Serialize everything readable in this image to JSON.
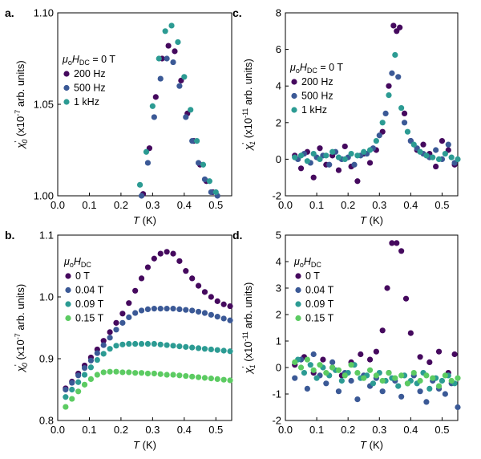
{
  "panels": [
    {
      "id": "a",
      "label": "a.",
      "ylabel_main": "χ",
      "ylabel_sub": "0",
      "ylabel_rest": " (x10",
      "ylabel_exp": "-7",
      "ylabel_end": " arb. units)",
      "xlabel_italic": "T",
      "xlabel_rest": " (K)",
      "xlim": [
        0.0,
        0.55
      ],
      "ylim": [
        1.0,
        1.1
      ],
      "xticks": [
        "0.0",
        "0.1",
        "0.2",
        "0.3",
        "0.4",
        "0.5"
      ],
      "xtick_values": [
        0.0,
        0.1,
        0.2,
        0.3,
        0.4,
        0.5
      ],
      "yticks": [
        "1.00",
        "1.05",
        "1.10"
      ],
      "ytick_values": [
        1.0,
        1.05,
        1.1
      ],
      "legend_title": "μoHDC = 0 T",
      "legend": [
        "200 Hz",
        "500 Hz",
        "1 kHz"
      ]
    },
    {
      "id": "b",
      "label": "b.",
      "ylabel_main": "χ",
      "ylabel_sub": "0",
      "ylabel_rest": " (x10",
      "ylabel_exp": "-7",
      "ylabel_end": " arb. units)",
      "xlabel_italic": "T",
      "xlabel_rest": " (K)",
      "xlim": [
        0.0,
        0.55
      ],
      "ylim": [
        0.8,
        1.1
      ],
      "xticks": [
        "0.0",
        "0.1",
        "0.2",
        "0.3",
        "0.4",
        "0.5"
      ],
      "xtick_values": [
        0.0,
        0.1,
        0.2,
        0.3,
        0.4,
        0.5
      ],
      "yticks": [
        "0.8",
        "0.9",
        "1.0",
        "1.1"
      ],
      "ytick_values": [
        0.8,
        0.9,
        1.0,
        1.1
      ],
      "legend_title": "μoHDC",
      "legend": [
        "0 T",
        "0.04 T",
        "0.09 T",
        "0.15 T"
      ]
    },
    {
      "id": "c",
      "label": "c.",
      "ylabel_main": "χ",
      "ylabel_sub": "1",
      "ylabel_rest": " (x10",
      "ylabel_exp": "-11",
      "ylabel_end": " arb. units)",
      "xlabel_italic": "T",
      "xlabel_rest": " (K)",
      "xlim": [
        0.0,
        0.55
      ],
      "ylim": [
        -2,
        8
      ],
      "xticks": [
        "0.0",
        "0.1",
        "0.2",
        "0.3",
        "0.4",
        "0.5"
      ],
      "xtick_values": [
        0.0,
        0.1,
        0.2,
        0.3,
        0.4,
        0.5
      ],
      "yticks": [
        "-2",
        "0",
        "2",
        "4",
        "6",
        "8"
      ],
      "ytick_values": [
        -2,
        0,
        2,
        4,
        6,
        8
      ],
      "legend_title": "μoHDC = 0 T",
      "legend": [
        "200 Hz",
        "500 Hz",
        "1 kHz"
      ]
    },
    {
      "id": "d",
      "label": "d.",
      "ylabel_main": "χ",
      "ylabel_sub": "1",
      "ylabel_rest": " (x10",
      "ylabel_exp": "-11",
      "ylabel_end": " arb. units)",
      "xlabel_italic": "T",
      "xlabel_rest": " (K)",
      "xlim": [
        0.0,
        0.55
      ],
      "ylim": [
        -2,
        5
      ],
      "xticks": [
        "0.0",
        "0.1",
        "0.2",
        "0.3",
        "0.4",
        "0.5"
      ],
      "xtick_values": [
        0.0,
        0.1,
        0.2,
        0.3,
        0.4,
        0.5
      ],
      "yticks": [
        "-2",
        "-1",
        "0",
        "1",
        "2",
        "3",
        "4",
        "5"
      ],
      "ytick_values": [
        -2,
        -1,
        0,
        1,
        2,
        3,
        4,
        5
      ],
      "legend_title": "μoHDC",
      "legend": [
        "0 T",
        "0.04 T",
        "0.09 T",
        "0.15 T"
      ]
    }
  ],
  "colors": {
    "purple": "#45095e",
    "blue": "#3b5996",
    "teal": "#2c9b93",
    "green": "#5ccb62"
  },
  "chart_data": [
    {
      "panel": "a",
      "type": "scatter",
      "xlabel": "T (K)",
      "ylabel": "χ0' (x10^-7 arb. units)",
      "xlim": [
        0.0,
        0.55
      ],
      "ylim": [
        1.0,
        1.1
      ],
      "series": [
        {
          "name": "200 Hz",
          "color": "purple",
          "x": [
            0.27,
            0.29,
            0.31,
            0.33,
            0.35,
            0.37,
            0.39,
            0.41,
            0.43,
            0.45,
            0.47,
            0.49
          ],
          "y": [
            1.001,
            1.026,
            1.054,
            1.075,
            1.082,
            1.079,
            1.063,
            1.045,
            1.03,
            1.017,
            1.008,
            1.002
          ]
        },
        {
          "name": "500 Hz",
          "color": "blue",
          "x": [
            0.265,
            0.285,
            0.305,
            0.325,
            0.345,
            0.365,
            0.385,
            0.405,
            0.425,
            0.445,
            0.465,
            0.485,
            0.505
          ],
          "y": [
            1.0,
            1.018,
            1.043,
            1.064,
            1.075,
            1.073,
            1.06,
            1.043,
            1.03,
            1.018,
            1.009,
            1.002,
            1.0
          ]
        },
        {
          "name": "1 kHz",
          "color": "teal",
          "x": [
            0.26,
            0.28,
            0.3,
            0.32,
            0.34,
            0.36,
            0.38,
            0.4,
            0.42,
            0.44,
            0.46,
            0.48,
            0.5
          ],
          "y": [
            1.006,
            1.024,
            1.049,
            1.075,
            1.09,
            1.093,
            1.084,
            1.065,
            1.047,
            1.03,
            1.017,
            1.008,
            1.002
          ]
        }
      ]
    },
    {
      "panel": "b",
      "type": "scatter",
      "xlabel": "T (K)",
      "ylabel": "χ0' (x10^-7 arb. units)",
      "xlim": [
        0.0,
        0.55
      ],
      "ylim": [
        0.8,
        1.1
      ],
      "series": [
        {
          "name": "0 T",
          "color": "purple",
          "x": [
            0.025,
            0.045,
            0.065,
            0.085,
            0.105,
            0.125,
            0.145,
            0.165,
            0.185,
            0.205,
            0.225,
            0.245,
            0.265,
            0.285,
            0.305,
            0.325,
            0.345,
            0.365,
            0.385,
            0.405,
            0.425,
            0.445,
            0.465,
            0.485,
            0.505,
            0.525,
            0.545
          ],
          "y": [
            0.852,
            0.863,
            0.876,
            0.889,
            0.902,
            0.915,
            0.929,
            0.943,
            0.958,
            0.973,
            0.99,
            1.01,
            1.03,
            1.048,
            1.062,
            1.07,
            1.073,
            1.07,
            1.058,
            1.042,
            1.03,
            1.018,
            1.008,
            1.0,
            0.993,
            0.988,
            0.985
          ]
        },
        {
          "name": "0.04 T",
          "color": "blue",
          "x": [
            0.025,
            0.045,
            0.065,
            0.085,
            0.105,
            0.125,
            0.145,
            0.165,
            0.185,
            0.205,
            0.225,
            0.245,
            0.265,
            0.285,
            0.305,
            0.325,
            0.345,
            0.365,
            0.385,
            0.405,
            0.425,
            0.445,
            0.465,
            0.485,
            0.505,
            0.525,
            0.545
          ],
          "y": [
            0.85,
            0.861,
            0.873,
            0.885,
            0.897,
            0.909,
            0.922,
            0.934,
            0.947,
            0.958,
            0.967,
            0.974,
            0.978,
            0.98,
            0.981,
            0.981,
            0.981,
            0.981,
            0.98,
            0.979,
            0.978,
            0.976,
            0.974,
            0.971,
            0.968,
            0.965,
            0.962
          ]
        },
        {
          "name": "0.09 T",
          "color": "teal",
          "x": [
            0.025,
            0.045,
            0.065,
            0.085,
            0.105,
            0.125,
            0.145,
            0.165,
            0.185,
            0.205,
            0.225,
            0.245,
            0.265,
            0.285,
            0.305,
            0.325,
            0.345,
            0.365,
            0.385,
            0.405,
            0.425,
            0.445,
            0.465,
            0.485,
            0.505,
            0.525,
            0.545
          ],
          "y": [
            0.838,
            0.85,
            0.862,
            0.874,
            0.886,
            0.898,
            0.908,
            0.916,
            0.921,
            0.923,
            0.924,
            0.924,
            0.924,
            0.924,
            0.924,
            0.923,
            0.922,
            0.921,
            0.92,
            0.919,
            0.918,
            0.917,
            0.916,
            0.915,
            0.914,
            0.913,
            0.912
          ]
        },
        {
          "name": "0.15 T",
          "color": "green",
          "x": [
            0.025,
            0.045,
            0.065,
            0.085,
            0.105,
            0.125,
            0.145,
            0.165,
            0.185,
            0.205,
            0.225,
            0.245,
            0.265,
            0.285,
            0.305,
            0.325,
            0.345,
            0.365,
            0.385,
            0.405,
            0.425,
            0.445,
            0.465,
            0.485,
            0.505,
            0.525,
            0.545
          ],
          "y": [
            0.822,
            0.835,
            0.847,
            0.858,
            0.867,
            0.874,
            0.878,
            0.879,
            0.879,
            0.878,
            0.878,
            0.877,
            0.877,
            0.876,
            0.876,
            0.875,
            0.874,
            0.874,
            0.873,
            0.872,
            0.871,
            0.87,
            0.869,
            0.868,
            0.867,
            0.866,
            0.865
          ]
        }
      ]
    },
    {
      "panel": "c",
      "type": "scatter",
      "xlabel": "T (K)",
      "ylabel": "χ1' (x10^-11 arb. units)",
      "xlim": [
        0.0,
        0.55
      ],
      "ylim": [
        -2,
        8
      ],
      "series": [
        {
          "name": "200 Hz",
          "color": "purple",
          "x": [
            0.03,
            0.05,
            0.07,
            0.09,
            0.11,
            0.13,
            0.15,
            0.17,
            0.19,
            0.21,
            0.23,
            0.25,
            0.27,
            0.29,
            0.31,
            0.33,
            0.345,
            0.355,
            0.365,
            0.38,
            0.4,
            0.42,
            0.44,
            0.46,
            0.48,
            0.5,
            0.52,
            0.54
          ],
          "y": [
            0.2,
            -0.5,
            0.4,
            -1.0,
            0.6,
            -0.3,
            0.2,
            -0.6,
            0.7,
            -0.4,
            -1.2,
            0.3,
            -0.2,
            0.5,
            1.5,
            4.0,
            7.3,
            7.0,
            7.2,
            2.5,
            1.0,
            0.5,
            0.8,
            0.3,
            -0.4,
            1.0,
            0.5,
            -0.3
          ]
        },
        {
          "name": "500 Hz",
          "color": "blue",
          "x": [
            0.04,
            0.06,
            0.08,
            0.1,
            0.12,
            0.14,
            0.16,
            0.18,
            0.2,
            0.22,
            0.24,
            0.26,
            0.28,
            0.3,
            0.32,
            0.34,
            0.36,
            0.38,
            0.4,
            0.42,
            0.44,
            0.46,
            0.48,
            0.5,
            0.52,
            0.54
          ],
          "y": [
            0.0,
            0.3,
            -0.2,
            0.1,
            0.2,
            -0.3,
            0.4,
            0.0,
            0.1,
            -0.3,
            0.2,
            0.3,
            0.6,
            1.3,
            2.5,
            4.7,
            4.5,
            2.0,
            1.0,
            0.6,
            0.3,
            0.1,
            0.5,
            0.0,
            0.8,
            -0.2
          ]
        },
        {
          "name": "1 kHz",
          "color": "teal",
          "x": [
            0.03,
            0.05,
            0.07,
            0.09,
            0.11,
            0.13,
            0.15,
            0.17,
            0.19,
            0.21,
            0.23,
            0.25,
            0.27,
            0.29,
            0.31,
            0.33,
            0.35,
            0.37,
            0.39,
            0.41,
            0.43,
            0.45,
            0.47,
            0.49,
            0.51,
            0.53,
            0.55
          ],
          "y": [
            0.1,
            0.2,
            -0.1,
            0.3,
            0.0,
            0.2,
            0.4,
            0.1,
            0.0,
            0.3,
            0.2,
            0.4,
            0.5,
            1.0,
            2.0,
            3.5,
            5.7,
            2.8,
            1.5,
            0.8,
            0.4,
            0.2,
            0.1,
            0.0,
            0.3,
            0.1,
            0.0
          ]
        }
      ]
    },
    {
      "panel": "d",
      "type": "scatter",
      "xlabel": "T (K)",
      "ylabel": "χ1' (x10^-11 arb. units)",
      "xlim": [
        0.0,
        0.55
      ],
      "ylim": [
        -2,
        5
      ],
      "series": [
        {
          "name": "0 T",
          "color": "purple",
          "x": [
            0.03,
            0.06,
            0.09,
            0.12,
            0.15,
            0.18,
            0.21,
            0.24,
            0.27,
            0.29,
            0.31,
            0.325,
            0.34,
            0.355,
            0.37,
            0.385,
            0.4,
            0.43,
            0.46,
            0.49,
            0.52,
            0.54
          ],
          "y": [
            0.1,
            0.4,
            -0.2,
            0.3,
            0.0,
            -0.3,
            0.2,
            0.5,
            0.3,
            0.6,
            1.4,
            3.0,
            4.7,
            4.7,
            4.4,
            2.6,
            1.3,
            0.4,
            0.2,
            0.6,
            -0.2,
            0.5
          ]
        },
        {
          "name": "0.04 T",
          "color": "blue",
          "x": [
            0.03,
            0.05,
            0.07,
            0.09,
            0.11,
            0.13,
            0.15,
            0.17,
            0.19,
            0.21,
            0.23,
            0.25,
            0.27,
            0.29,
            0.31,
            0.33,
            0.35,
            0.37,
            0.39,
            0.41,
            0.43,
            0.45,
            0.47,
            0.49,
            0.51,
            0.53,
            0.55
          ],
          "y": [
            -0.4,
            0.3,
            -0.8,
            0.5,
            -0.3,
            -0.6,
            0.2,
            -0.9,
            -0.2,
            -0.5,
            -1.2,
            -0.3,
            -0.7,
            -0.4,
            -0.9,
            -0.2,
            -0.5,
            -1.1,
            -0.6,
            -0.3,
            -0.9,
            -1.3,
            -0.5,
            -0.8,
            -1.0,
            -0.6,
            -1.5
          ]
        },
        {
          "name": "0.09 T",
          "color": "teal",
          "x": [
            0.04,
            0.06,
            0.08,
            0.1,
            0.12,
            0.14,
            0.16,
            0.18,
            0.2,
            0.22,
            0.24,
            0.26,
            0.28,
            0.3,
            0.32,
            0.34,
            0.36,
            0.38,
            0.4,
            0.42,
            0.44,
            0.46,
            0.48,
            0.5,
            0.52,
            0.54
          ],
          "y": [
            0.3,
            -0.2,
            0.1,
            -0.4,
            0.0,
            -0.3,
            -0.1,
            -0.5,
            -0.2,
            0.1,
            -0.4,
            -0.3,
            -0.6,
            -0.2,
            -0.5,
            -0.4,
            -0.7,
            -0.3,
            -0.5,
            -0.6,
            -0.2,
            -0.8,
            -0.4,
            -0.5,
            -0.3,
            -0.6
          ]
        },
        {
          "name": "0.15 T",
          "color": "green",
          "x": [
            0.03,
            0.05,
            0.07,
            0.09,
            0.11,
            0.13,
            0.15,
            0.17,
            0.19,
            0.21,
            0.23,
            0.25,
            0.27,
            0.29,
            0.31,
            0.33,
            0.35,
            0.37,
            0.39,
            0.41,
            0.43,
            0.45,
            0.47,
            0.49,
            0.51,
            0.53,
            0.55
          ],
          "y": [
            0.2,
            0.0,
            0.3,
            -0.1,
            0.1,
            -0.2,
            0.0,
            -0.1,
            -0.3,
            0.1,
            -0.2,
            -0.4,
            -0.1,
            -0.3,
            -0.5,
            -0.2,
            -0.4,
            -0.3,
            -0.6,
            -0.2,
            -0.5,
            -0.3,
            -0.4,
            -0.7,
            -0.3,
            -0.5,
            -0.4
          ]
        }
      ]
    }
  ]
}
